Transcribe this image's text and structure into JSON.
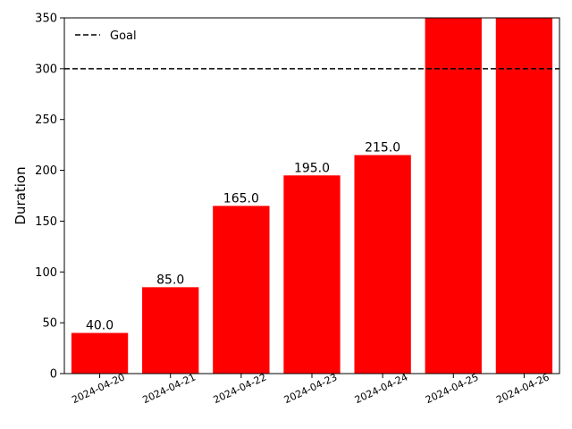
{
  "chart_data": {
    "type": "bar",
    "categories": [
      "2024-04-20",
      "2024-04-21",
      "2024-04-22",
      "2024-04-23",
      "2024-04-24",
      "2024-04-25",
      "2024-04-26"
    ],
    "values": [
      40,
      85,
      165,
      195,
      215,
      350,
      350
    ],
    "data_labels": [
      "40.0",
      "85.0",
      "165.0",
      "195.0",
      "215.0",
      "",
      ""
    ],
    "ylabel": "Duration",
    "xlabel": "",
    "ylim": [
      0,
      350
    ],
    "yticks": [
      0,
      50,
      100,
      150,
      200,
      250,
      300,
      350
    ],
    "goal": {
      "label": "Goal",
      "value": 300
    },
    "bar_color": "#ff0000",
    "goal_color": "#000000",
    "grid": false,
    "legend_position": "top-left"
  }
}
